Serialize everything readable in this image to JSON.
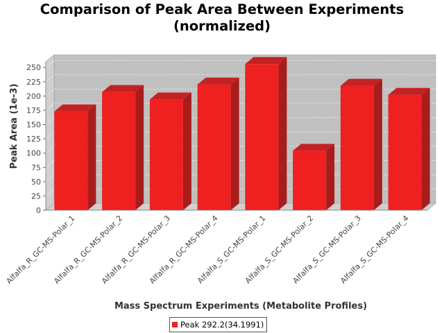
{
  "chart_data": {
    "type": "bar",
    "title_line1": "Comparison of Peak Area Between Experiments",
    "title_line2": "(normalized)",
    "xlabel": "Mass Spectrum Experiments (Metabolite Profiles)",
    "ylabel": "Peak Area (1e-3)",
    "categories": [
      "Alfalfa_R_GC-MS-Polar_1",
      "Alfalfa_R_GC-MS-Polar_2",
      "Alfalfa_R_GC-MS-Polar_3",
      "Alfalfa_R_GC-MS-Polar_4",
      "Alfalfa_S_GC-MS-Polar_1",
      "Alfalfa_S_GC-MS-Polar_2",
      "Alfalfa_S_GC-MS-Polar_3",
      "Alfalfa_S_GC-MS-Polar_4"
    ],
    "series": [
      {
        "name": "Peak 292.2(34.1991)",
        "values": [
          173,
          207,
          194,
          220,
          256,
          104,
          218,
          202
        ],
        "color": "#ee2020"
      }
    ],
    "ylim": [
      0,
      260
    ],
    "yticks": [
      "0",
      "25",
      "50",
      "75",
      "100",
      "125",
      "150",
      "175",
      "200",
      "225",
      "250"
    ],
    "grid": true,
    "legend_position": "bottom",
    "style": "3d-bar",
    "plot_background": "#c0c0c0",
    "wall_color": "#d0d0d0"
  }
}
